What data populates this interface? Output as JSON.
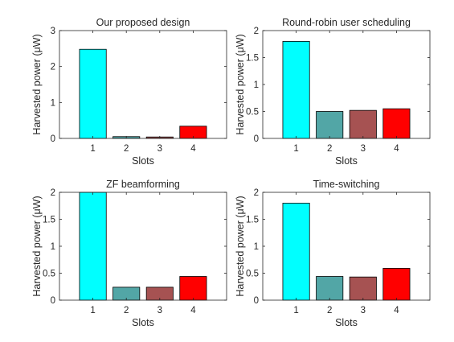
{
  "chart_data": [
    {
      "type": "bar",
      "title": "Our proposed design",
      "xlabel": "Slots",
      "ylabel": "Harvested power (μW)",
      "categories": [
        "1",
        "2",
        "3",
        "4"
      ],
      "values": [
        2.48,
        0.05,
        0.04,
        0.34
      ],
      "ylim": [
        0,
        3
      ],
      "yticks": [
        "0",
        "1",
        "2",
        "3"
      ]
    },
    {
      "type": "bar",
      "title": "Round-robin user scheduling",
      "xlabel": "Slots",
      "ylabel": "Harvested power (μW)",
      "categories": [
        "1",
        "2",
        "3",
        "4"
      ],
      "values": [
        1.8,
        0.5,
        0.52,
        0.55
      ],
      "ylim": [
        0,
        2
      ],
      "yticks": [
        "0",
        "0.5",
        "1",
        "1.5",
        "2"
      ]
    },
    {
      "type": "bar",
      "title": "ZF beamforming",
      "xlabel": "Slots",
      "ylabel": "Harvested power (μW)",
      "categories": [
        "1",
        "2",
        "3",
        "4"
      ],
      "values": [
        2.0,
        0.24,
        0.24,
        0.44
      ],
      "ylim": [
        0,
        2
      ],
      "yticks": [
        "0",
        "0.5",
        "1",
        "1.5",
        "2"
      ]
    },
    {
      "type": "bar",
      "title": "Time-switching",
      "xlabel": "Slots",
      "ylabel": "Harvested power (μW)",
      "categories": [
        "1",
        "2",
        "3",
        "4"
      ],
      "values": [
        1.8,
        0.44,
        0.43,
        0.59
      ],
      "ylim": [
        0,
        2
      ],
      "yticks": [
        "0",
        "0.5",
        "1",
        "1.5",
        "2"
      ]
    }
  ],
  "colors": {
    "slot1": "#00ffff",
    "slot2": "#52a6a6",
    "slot3": "#a65252",
    "slot4": "#ff0000",
    "axis": "#262626"
  },
  "grid": false,
  "legend": "none"
}
